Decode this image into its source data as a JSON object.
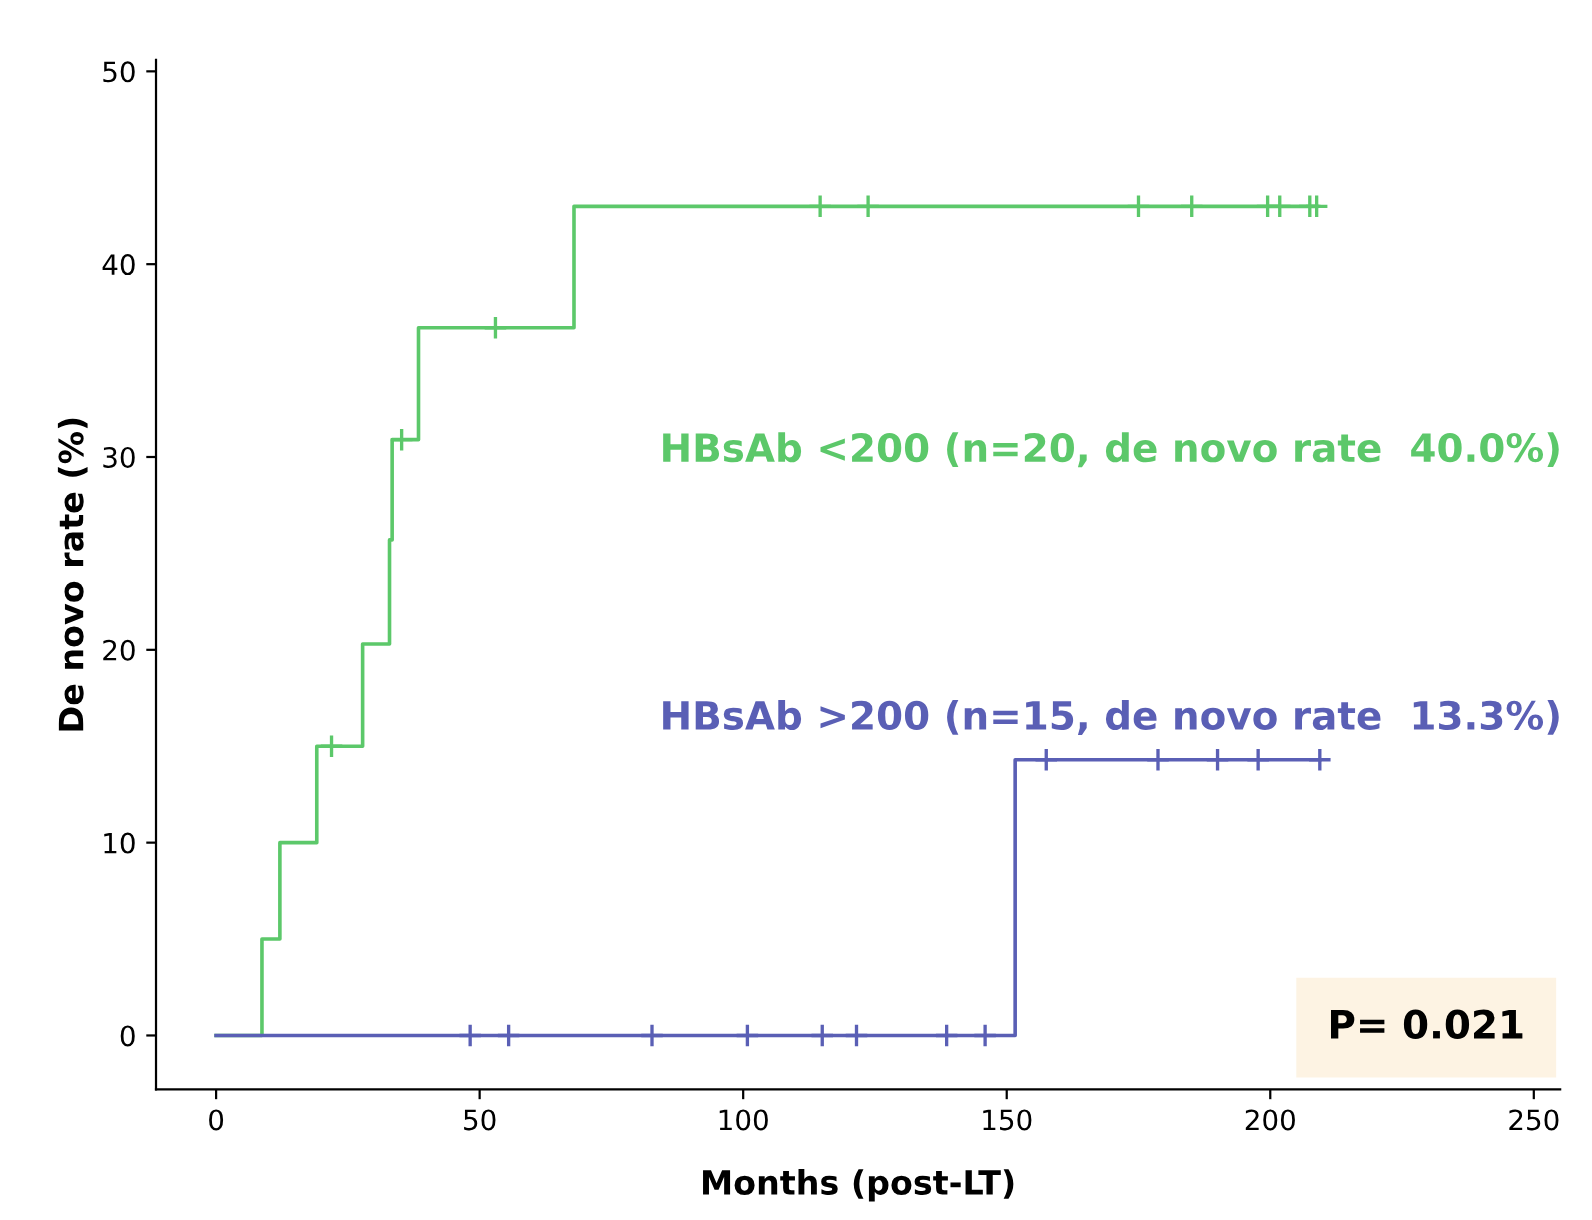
{
  "chart_data": {
    "type": "step",
    "xlabel": "Months (post-LT)",
    "ylabel": "De novo rate (%)",
    "xlim": [
      -11.4,
      255
    ],
    "xticks": [
      0,
      50,
      100,
      150,
      200,
      250
    ],
    "ylim": [
      -2.8,
      50.6
    ],
    "yticks": [
      0,
      10,
      20,
      30,
      40,
      50
    ],
    "grid": false,
    "legend": false,
    "series": [
      {
        "name": "HBsAb <200 (n=20, de novo rate  40.0%)",
        "color": "#5cc86a",
        "x": [
          0,
          8.7,
          12.1,
          19.1,
          27.8,
          32.9,
          33.4,
          38.4,
          67.9,
          208.8
        ],
        "values": [
          0,
          5,
          10,
          15,
          20.3,
          25.7,
          30.9,
          36.7,
          43,
          43
        ]
      },
      {
        "name": "HBsAb >200 (n=15, de novo rate  13.3%)",
        "color": "#5a5fb5",
        "x": [
          0,
          151.6,
          209.4
        ],
        "values": [
          0,
          14.3,
          14.3
        ]
      },
      {
        "type": "scatter",
        "marker": "cross",
        "color": "#5cc86a",
        "x": [
          21.9,
          35.2,
          53.0,
          114.6,
          123.7,
          175.0,
          185.1,
          199.5,
          201.8,
          207.5,
          208.8
        ],
        "values": [
          15,
          30.9,
          36.7,
          43,
          43,
          43,
          43,
          43,
          43,
          43,
          43
        ]
      },
      {
        "type": "scatter",
        "marker": "cross",
        "color": "#5a5fb5",
        "x": [
          48.2,
          55.5,
          82.7,
          100.8,
          115,
          121.5,
          138.6,
          145.9,
          157.5,
          178.7,
          190,
          197.7,
          209.4
        ],
        "values": [
          0,
          0,
          0,
          0,
          0,
          0,
          0,
          0,
          14.3,
          14.3,
          14.3,
          14.3,
          14.3
        ]
      }
    ],
    "annotations": [
      "P= 0.021"
    ]
  }
}
